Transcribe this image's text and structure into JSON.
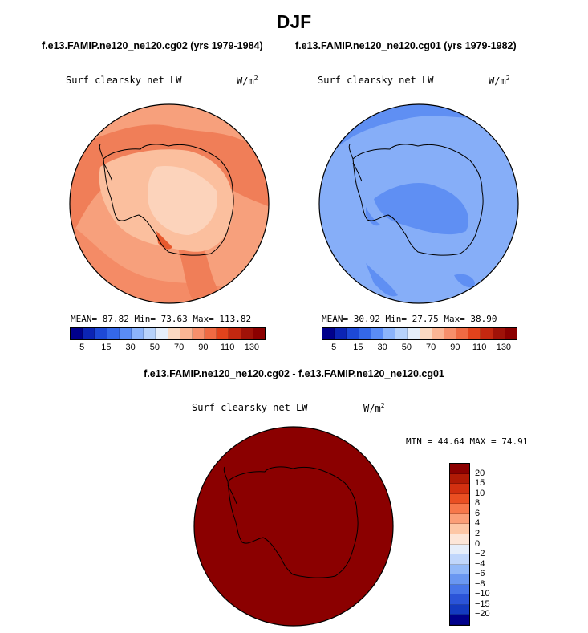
{
  "header": {
    "season": "DJF",
    "run_left": "f.e13.FAMIP.ne120_ne120.cg02 (yrs 1979-1984)",
    "run_right": "f.e13.FAMIP.ne120_ne120.cg01 (yrs 1979-1982)",
    "diff_title": "f.e13.FAMIP.ne120_ne120.cg02 - f.e13.FAMIP.ne120_ne120.cg01"
  },
  "panels": {
    "left": {
      "variable": "Surf clearsky net LW",
      "units_prefix": "W/m",
      "units_sup": "2",
      "stats": "MEAN=  87.82  Min=  73.63  Max= 113.82"
    },
    "right": {
      "variable": "Surf clearsky net LW",
      "units_prefix": "W/m",
      "units_sup": "2",
      "stats": "MEAN=  30.92  Min=  27.75  Max=  38.90"
    },
    "diff": {
      "variable": "Surf clearsky net LW",
      "units_prefix": "W/m",
      "units_sup": "2",
      "stats": "MIN =  44.64  MAX =  74.91"
    }
  },
  "chart_data": [
    {
      "type": "heatmap",
      "projection": "south polar stereographic",
      "title": "Surf clearsky net LW",
      "units": "W/m2",
      "mean": 87.82,
      "min": 73.63,
      "max": 113.82,
      "colorbar_ticks": [
        "5",
        "15",
        "30",
        "50",
        "70",
        "90",
        "110",
        "130"
      ]
    },
    {
      "type": "heatmap",
      "projection": "south polar stereographic",
      "title": "Surf clearsky net LW",
      "units": "W/m2",
      "mean": 30.92,
      "min": 27.75,
      "max": 38.9,
      "colorbar_ticks": [
        "5",
        "15",
        "30",
        "50",
        "70",
        "90",
        "110",
        "130"
      ]
    },
    {
      "type": "heatmap",
      "projection": "south polar stereographic",
      "title": "Surf clearsky net LW",
      "units": "W/m2",
      "min": 44.64,
      "max": 74.91,
      "colorbar_ticks": [
        "20",
        "15",
        "10",
        "8",
        "6",
        "4",
        "2",
        "0",
        "−2",
        "−4",
        "−6",
        "−8",
        "−10",
        "−15",
        "−20"
      ]
    }
  ],
  "colors": {
    "scale_abs": [
      "#00008b",
      "#0b24b4",
      "#1d49d6",
      "#3468e8",
      "#5a8cf6",
      "#8cb4fb",
      "#b7d2fb",
      "#e6eefa",
      "#fbd9c2",
      "#fbb594",
      "#f78f6b",
      "#ef6a43",
      "#e2431c",
      "#c42810",
      "#a01208",
      "#8b0000"
    ],
    "scale_diff": [
      "#8b0000",
      "#b01a05",
      "#d23010",
      "#ea4f22",
      "#f7774a",
      "#fb9e77",
      "#fdc7a6",
      "#fde6d8",
      "#e6eefa",
      "#c0d6fb",
      "#93b9f8",
      "#6a97f1",
      "#4775e8",
      "#2b54d8",
      "#143ac0",
      "#00008b"
    ]
  }
}
